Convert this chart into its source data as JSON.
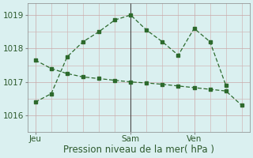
{
  "line1_x": [
    0,
    6,
    12,
    18,
    24,
    30,
    36,
    42,
    48,
    54,
    60,
    66,
    72
  ],
  "line1_y": [
    1016.4,
    1016.65,
    1017.75,
    1018.2,
    1018.5,
    1018.85,
    1019.0,
    1018.55,
    1018.2,
    1017.8,
    1018.6,
    1018.2,
    1016.9
  ],
  "line2_x": [
    0,
    6,
    12,
    18,
    24,
    30,
    36,
    42,
    48,
    54,
    60,
    66,
    72,
    78
  ],
  "line2_y": [
    1017.65,
    1017.4,
    1017.25,
    1017.15,
    1017.1,
    1017.05,
    1017.0,
    1016.97,
    1016.93,
    1016.88,
    1016.83,
    1016.78,
    1016.73,
    1016.3
  ],
  "vline_x": 36,
  "xtick_positions": [
    0,
    36,
    60
  ],
  "xtick_labels": [
    "Jeu",
    "Sam",
    "Ven"
  ],
  "ytick_positions": [
    1016,
    1017,
    1018,
    1019
  ],
  "ylim": [
    1015.7,
    1019.35
  ],
  "xlim": [
    -3,
    81
  ],
  "xlabel": "Pression niveau de la mer( hPa )",
  "line_color": "#2d6a2d",
  "bg_color": "#daf0f0",
  "grid_color_minor": "#d0b8b8",
  "grid_color_major": "#c8a8a8",
  "vline_color": "#4a4a4a",
  "xlabel_fontsize": 8.5,
  "tick_fontsize": 7.5
}
